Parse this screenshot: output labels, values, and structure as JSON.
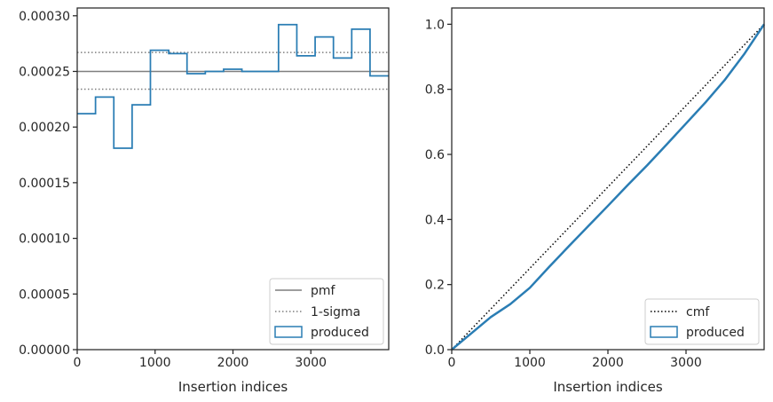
{
  "colors": {
    "produced": "#2a7db4",
    "reference_line": "#7f7f7f",
    "cmf_line": "#000000",
    "axes": "#262626"
  },
  "chart_data": [
    {
      "type": "line",
      "title": "",
      "xlabel": "Insertion indices",
      "ylabel": "",
      "xlim": [
        0,
        4000
      ],
      "ylim": [
        0,
        0.000307
      ],
      "x_ticks": [
        0,
        1000,
        2000,
        3000
      ],
      "x_tick_labels": [
        "0",
        "1000",
        "2000",
        "3000"
      ],
      "y_ticks": [
        0,
        5e-05,
        0.0001,
        0.00015,
        0.0002,
        0.00025,
        0.0003
      ],
      "y_tick_labels": [
        "0.00000",
        "0.00005",
        "0.00010",
        "0.00015",
        "0.00020",
        "0.00025",
        "0.00030"
      ],
      "grid": false,
      "legend_position": "bottom-right",
      "legend": [
        "pmf",
        "1-sigma",
        "produced"
      ],
      "histogram": {
        "name": "produced",
        "bin_edges": [
          0,
          235,
          470,
          705,
          940,
          1175,
          1410,
          1645,
          1880,
          2115,
          2350,
          2585,
          2820,
          3055,
          3290,
          3525,
          3760,
          4000
        ],
        "values": [
          0.000212,
          0.000227,
          0.000181,
          0.00022,
          0.000269,
          0.000266,
          0.000248,
          0.00025,
          0.000252,
          0.00025,
          0.00025,
          0.000292,
          0.000264,
          0.000281,
          0.000262,
          0.000288,
          0.000246
        ]
      },
      "reference_lines": [
        {
          "name": "pmf",
          "y": 0.00025,
          "style": "solid"
        },
        {
          "name": "1-sigma",
          "y": 0.000267,
          "style": "dotted"
        },
        {
          "name": "1-sigma",
          "y": 0.000234,
          "style": "dotted"
        }
      ]
    },
    {
      "type": "line",
      "title": "",
      "xlabel": "Insertion indices",
      "ylabel": "",
      "xlim": [
        0,
        4000
      ],
      "ylim": [
        0,
        1.05
      ],
      "x_ticks": [
        0,
        1000,
        2000,
        3000
      ],
      "x_tick_labels": [
        "0",
        "1000",
        "2000",
        "3000"
      ],
      "y_ticks": [
        0,
        0.2,
        0.4,
        0.6,
        0.8,
        1.0
      ],
      "y_tick_labels": [
        "0.0",
        "0.2",
        "0.4",
        "0.6",
        "0.8",
        "1.0"
      ],
      "grid": false,
      "legend_position": "bottom-right",
      "legend": [
        "cmf",
        "produced"
      ],
      "series": [
        {
          "name": "cmf",
          "style": "dotted",
          "x": [
            0,
            4000
          ],
          "y": [
            0,
            1.0
          ]
        },
        {
          "name": "produced",
          "style": "solid",
          "x": [
            0,
            250,
            500,
            750,
            1000,
            1250,
            1500,
            1750,
            2000,
            2250,
            2500,
            2750,
            3000,
            3250,
            3500,
            3750,
            4000
          ],
          "y": [
            0,
            0.05,
            0.1,
            0.14,
            0.19,
            0.255,
            0.318,
            0.38,
            0.442,
            0.505,
            0.566,
            0.63,
            0.695,
            0.76,
            0.83,
            0.91,
            1.0
          ]
        }
      ]
    }
  ]
}
